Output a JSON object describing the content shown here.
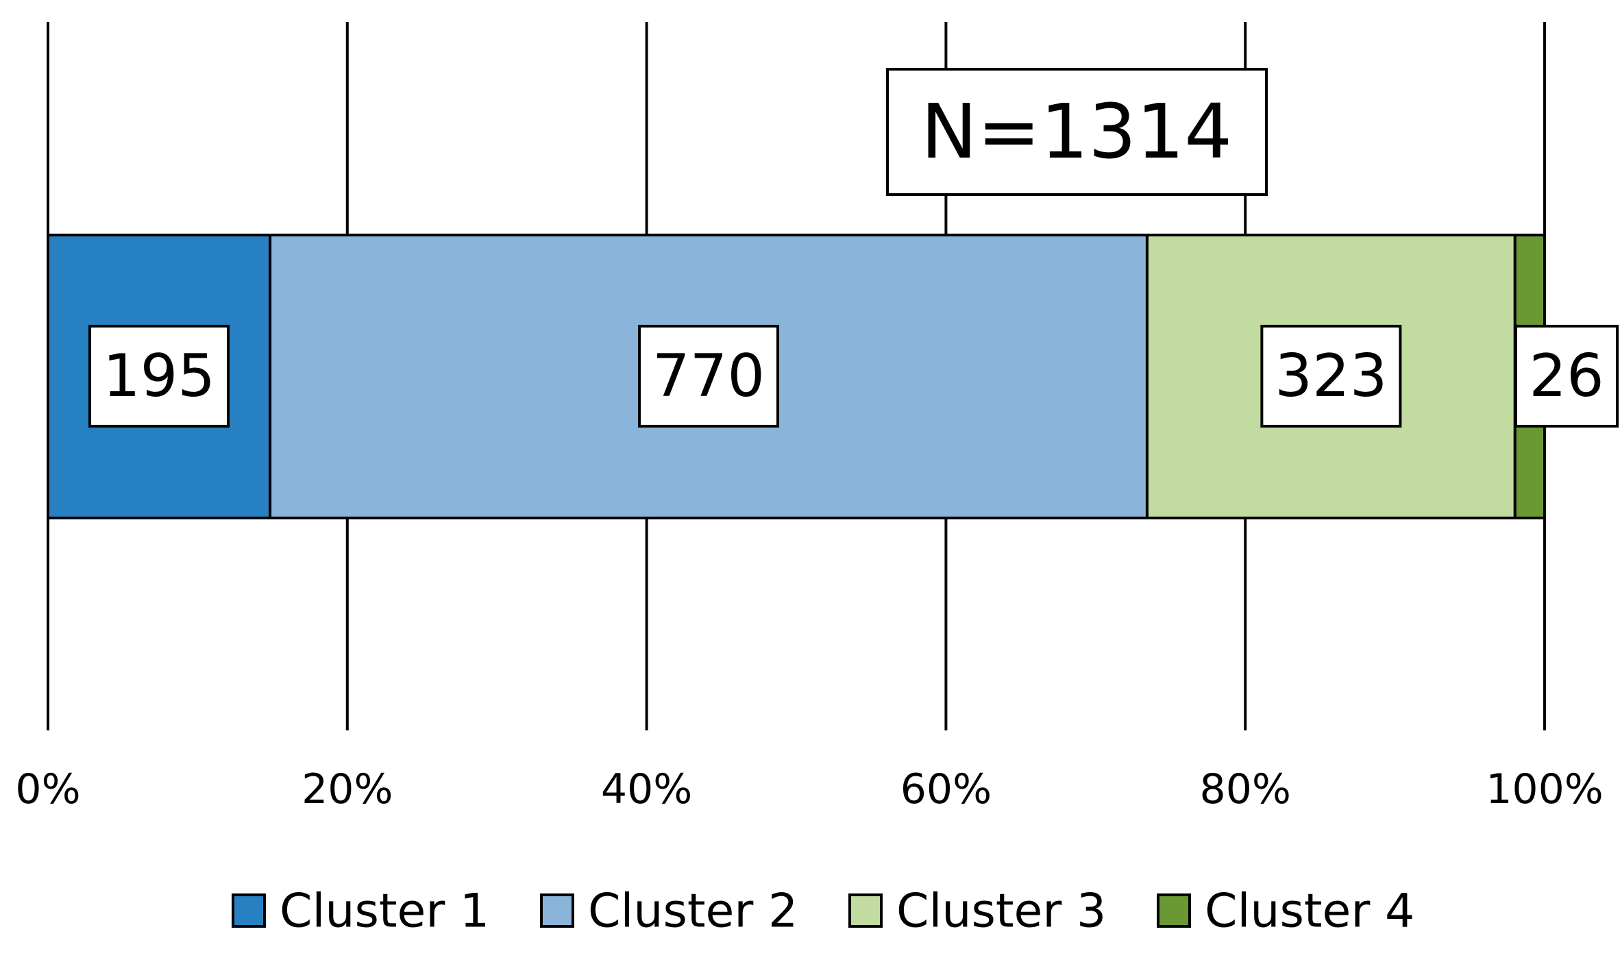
{
  "chart_data": {
    "type": "bar",
    "orientation": "horizontal",
    "stacked": "100%",
    "annotation": "N=1314",
    "xticks": [
      "0%",
      "20%",
      "40%",
      "60%",
      "80%",
      "100%"
    ],
    "xlim": [
      0,
      100
    ],
    "grid": true,
    "legend_position": "bottom",
    "series": [
      {
        "name": "Cluster 1",
        "value": 195,
        "color": "#2680C2"
      },
      {
        "name": "Cluster 2",
        "value": 770,
        "color": "#8BB4DA"
      },
      {
        "name": "Cluster 3",
        "value": 323,
        "color": "#C2DBA0"
      },
      {
        "name": "Cluster 4",
        "value": 26,
        "color": "#6A9832"
      }
    ]
  }
}
